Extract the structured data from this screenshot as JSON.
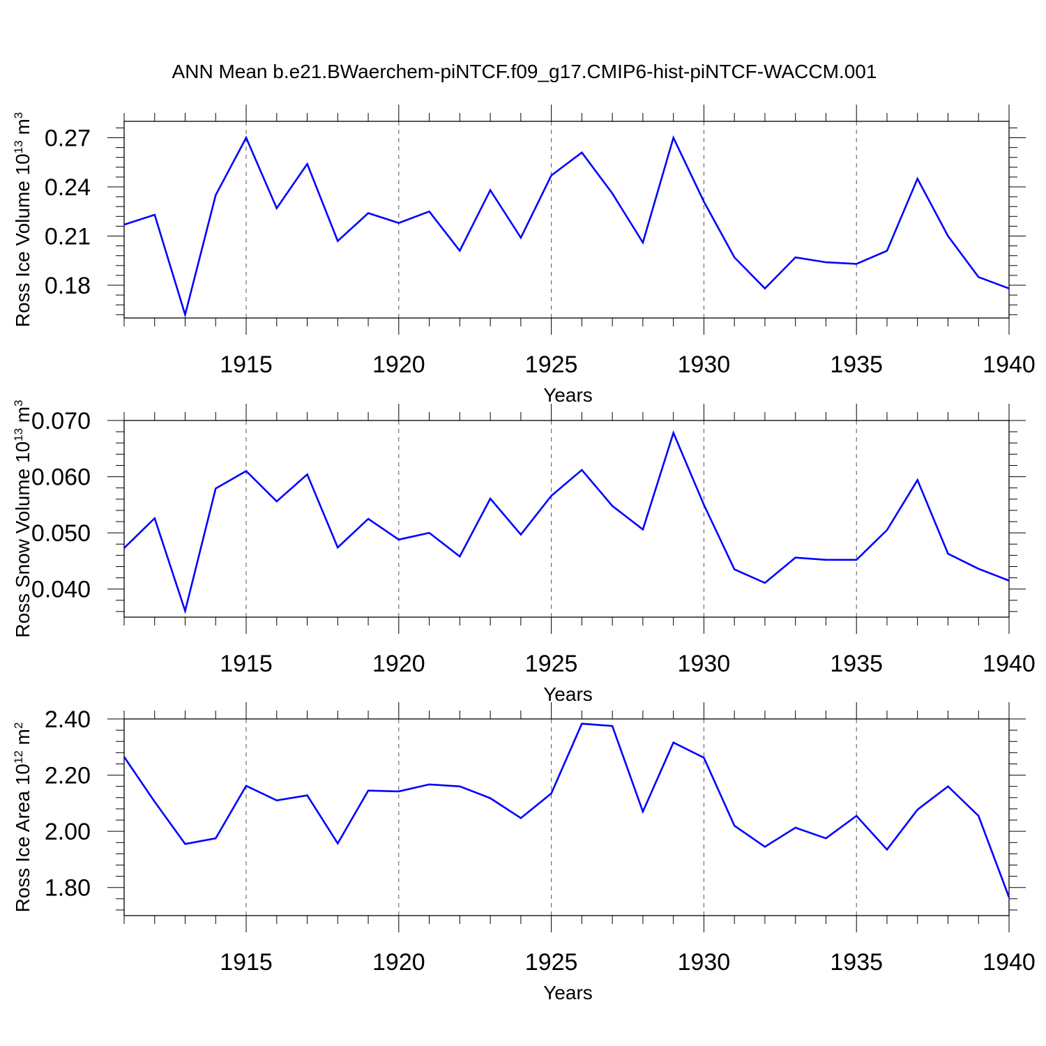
{
  "title": "ANN Mean b.e21.BWaerchem-piNTCF.f09_g17.CMIP6-hist-piNTCF-WACCM.001",
  "colors": {
    "series": "#0000ff",
    "axis": "#000000",
    "grid": "#555555"
  },
  "chart_data": [
    {
      "type": "line",
      "ylabel": {
        "text": "Ross Ice Volume 10",
        "sup": "13",
        "unit": " m",
        "unit_sup": "3"
      },
      "xlabel": "Years",
      "xlim": [
        1911,
        1940
      ],
      "ylim": [
        0.16,
        0.28
      ],
      "xticks": [
        1915,
        1920,
        1925,
        1930,
        1935,
        1940
      ],
      "xtick_labels": [
        "1915",
        "1920",
        "1925",
        "1930",
        "1935",
        "1940"
      ],
      "yticks": [
        0.18,
        0.21,
        0.24,
        0.27
      ],
      "ytick_labels": [
        "0.18",
        "0.21",
        "0.24",
        "0.27"
      ],
      "grid": "vertical dashed at major x ticks",
      "x": [
        1911,
        1912,
        1913,
        1914,
        1915,
        1916,
        1917,
        1918,
        1919,
        1920,
        1921,
        1922,
        1923,
        1924,
        1925,
        1926,
        1927,
        1928,
        1929,
        1930,
        1931,
        1932,
        1933,
        1934,
        1935,
        1936,
        1937,
        1938,
        1939,
        1940
      ],
      "values": [
        0.217,
        0.223,
        0.162,
        0.235,
        0.27,
        0.227,
        0.254,
        0.207,
        0.224,
        0.218,
        0.225,
        0.201,
        0.238,
        0.209,
        0.247,
        0.261,
        0.236,
        0.206,
        0.27,
        0.231,
        0.197,
        0.178,
        0.197,
        0.194,
        0.193,
        0.201,
        0.245,
        0.21,
        0.185,
        0.178
      ]
    },
    {
      "type": "line",
      "ylabel": {
        "text": "Ross Snow Volume 10",
        "sup": "13",
        "unit": " m",
        "unit_sup": "3"
      },
      "xlabel": "Years",
      "xlim": [
        1911,
        1940
      ],
      "ylim": [
        0.035,
        0.07
      ],
      "xticks": [
        1915,
        1920,
        1925,
        1930,
        1935,
        1940
      ],
      "xtick_labels": [
        "1915",
        "1920",
        "1925",
        "1930",
        "1935",
        "1940"
      ],
      "yticks": [
        0.04,
        0.05,
        0.06,
        0.07
      ],
      "ytick_labels": [
        "0.040",
        "0.050",
        "0.060",
        "0.070"
      ],
      "grid": "vertical dashed at major x ticks",
      "x": [
        1911,
        1912,
        1913,
        1914,
        1915,
        1916,
        1917,
        1918,
        1919,
        1920,
        1921,
        1922,
        1923,
        1924,
        1925,
        1926,
        1927,
        1928,
        1929,
        1930,
        1931,
        1932,
        1933,
        1934,
        1935,
        1936,
        1937,
        1938,
        1939,
        1940
      ],
      "values": [
        0.0473,
        0.0526,
        0.0361,
        0.0579,
        0.061,
        0.0556,
        0.0604,
        0.0474,
        0.0525,
        0.0488,
        0.05,
        0.0458,
        0.0561,
        0.0497,
        0.0566,
        0.0612,
        0.0548,
        0.0506,
        0.0678,
        0.055,
        0.0435,
        0.0411,
        0.0456,
        0.0452,
        0.0452,
        0.0505,
        0.0594,
        0.0463,
        0.0436,
        0.0415
      ]
    },
    {
      "type": "line",
      "ylabel": {
        "text": "Ross Ice Area 10",
        "sup": "12",
        "unit": " m",
        "unit_sup": "2"
      },
      "xlabel": "Years",
      "xlim": [
        1911,
        1940
      ],
      "ylim": [
        1.7,
        2.4
      ],
      "xticks": [
        1915,
        1920,
        1925,
        1930,
        1935,
        1940
      ],
      "xtick_labels": [
        "1915",
        "1920",
        "1925",
        "1930",
        "1935",
        "1940"
      ],
      "yticks": [
        1.8,
        2.0,
        2.2,
        2.4
      ],
      "ytick_labels": [
        "1.80",
        "2.00",
        "2.20",
        "2.40"
      ],
      "grid": "vertical dashed at major x ticks",
      "x": [
        1911,
        1912,
        1913,
        1914,
        1915,
        1916,
        1917,
        1918,
        1919,
        1920,
        1921,
        1922,
        1923,
        1924,
        1925,
        1926,
        1927,
        1928,
        1929,
        1930,
        1931,
        1932,
        1933,
        1934,
        1935,
        1936,
        1937,
        1938,
        1939,
        1940
      ],
      "values": [
        2.265,
        2.105,
        1.955,
        1.975,
        2.162,
        2.11,
        2.128,
        1.957,
        2.145,
        2.142,
        2.167,
        2.16,
        2.118,
        2.047,
        2.135,
        2.383,
        2.375,
        2.07,
        2.316,
        2.262,
        2.02,
        1.945,
        2.013,
        1.975,
        2.055,
        1.935,
        2.077,
        2.16,
        2.055,
        1.765
      ]
    }
  ]
}
